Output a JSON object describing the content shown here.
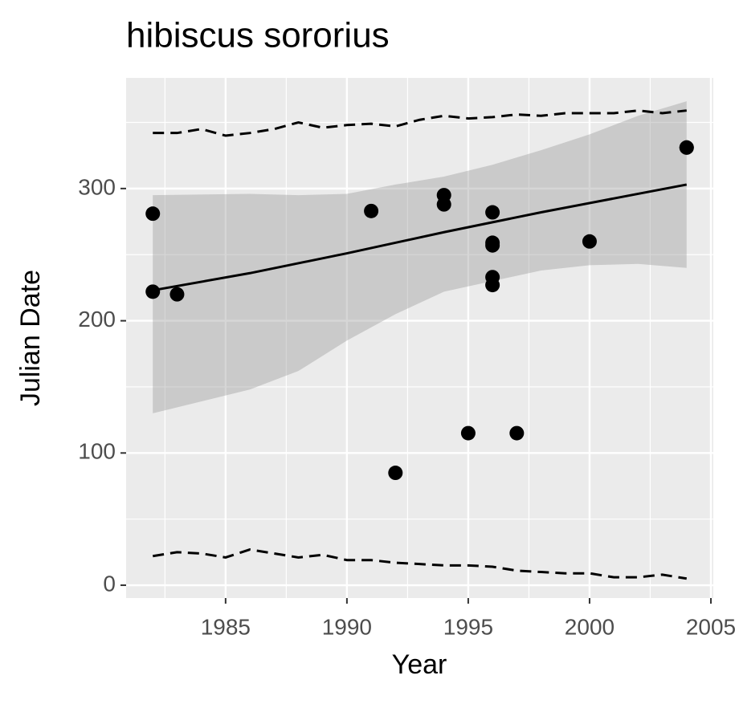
{
  "chart_data": {
    "type": "scatter",
    "title": "hibiscus sororius",
    "xlabel": "Year",
    "ylabel": "Julian Date",
    "xlim": [
      1980.9,
      2005.1
    ],
    "ylim": [
      -9.7,
      383.7
    ],
    "xticks": [
      1985,
      1990,
      1995,
      2000,
      2005
    ],
    "yticks": [
      0,
      100,
      200,
      300
    ],
    "xminorticks": [
      1982.5,
      1987.5,
      1992.5,
      1997.5,
      2002.5
    ],
    "yminorticks": [
      50,
      150,
      250,
      350
    ],
    "grid": true,
    "color": "#000000",
    "x": [
      1982,
      1982,
      1983,
      1991,
      1992,
      1994,
      1994,
      1995,
      1996,
      1996,
      1996,
      1996,
      1996,
      1997,
      2000,
      2004,
      2004
    ],
    "y": [
      281,
      222,
      220,
      283,
      85,
      295,
      288,
      115,
      282,
      259,
      257,
      233,
      227,
      115,
      260,
      331,
      331
    ],
    "smooth": {
      "x": [
        1982,
        1986,
        1990,
        1994,
        1998,
        2002,
        2004
      ],
      "y": [
        223,
        236,
        251,
        267,
        282,
        296,
        303
      ]
    },
    "ribbon": {
      "x": [
        1982,
        1986,
        1988,
        1990,
        1992,
        1994,
        1996,
        1998,
        2000,
        2002,
        2004
      ],
      "upper": [
        295,
        296,
        295,
        296,
        303,
        309,
        318,
        329,
        341,
        355,
        366
      ],
      "lower": [
        130,
        148,
        162,
        185,
        205,
        222,
        230,
        238,
        242,
        243,
        240
      ]
    },
    "quantile_x": [
      1982,
      1983,
      1984,
      1985,
      1986,
      1987,
      1988,
      1989,
      1990,
      1991,
      1992,
      1993,
      1994,
      1995,
      1996,
      1997,
      1998,
      1999,
      2000,
      2001,
      2002,
      2003,
      2004
    ],
    "quantile_upper": [
      342,
      342,
      345,
      340,
      342,
      345,
      350,
      346,
      348,
      349,
      347,
      352,
      355,
      353,
      354,
      356,
      355,
      357,
      357,
      357,
      359,
      357,
      359
    ],
    "quantile_lower": [
      22,
      25,
      24,
      21,
      27,
      24,
      21,
      23,
      19,
      19,
      17,
      16,
      15,
      15,
      14,
      11,
      10,
      9,
      9,
      6,
      6,
      8,
      5
    ]
  }
}
